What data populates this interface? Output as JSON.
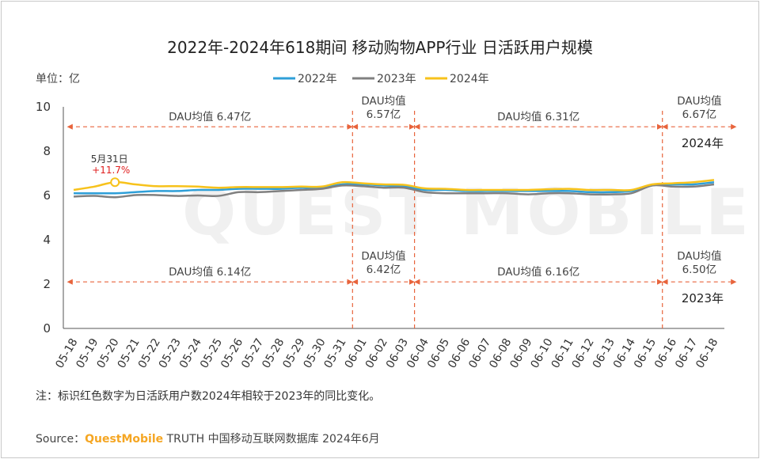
{
  "title": "2022年-2024年618期间 移动购物APP行业 日活跃用户规模",
  "unit_label": "单位：亿",
  "watermark": "QUEST MOBILE",
  "note": "注：标识红色数字为日活跃用户数2024年相较于2023年的同比变化。",
  "source": {
    "prefix": "Source：",
    "brand": "QuestMobile",
    "text": " TRUTH 中国移动互联网数据库 2024年6月"
  },
  "colors": {
    "y2022": "#2e9fd8",
    "y2023": "#808080",
    "y2024": "#f7c21b",
    "annotation": "#e8643c",
    "callout_red": "#e02020"
  },
  "chart_data": {
    "type": "line",
    "x": [
      "05-18",
      "05-19",
      "05-20",
      "05-21",
      "05-22",
      "05-23",
      "05-24",
      "05-25",
      "05-26",
      "05-27",
      "05-28",
      "05-29",
      "05-30",
      "05-31",
      "06-01",
      "06-02",
      "06-03",
      "06-04",
      "06-05",
      "06-06",
      "06-07",
      "06-08",
      "06-09",
      "06-10",
      "06-11",
      "06-12",
      "06-13",
      "06-14",
      "06-15",
      "06-16",
      "06-17",
      "06-18"
    ],
    "ylim": [
      0,
      10
    ],
    "yticks": [
      0,
      2,
      4,
      6,
      8,
      10
    ],
    "series": [
      {
        "name": "2022年",
        "color": "#2e9fd8",
        "values": [
          6.1,
          6.1,
          6.1,
          6.15,
          6.2,
          6.2,
          6.25,
          6.25,
          6.3,
          6.3,
          6.3,
          6.35,
          6.35,
          6.5,
          6.5,
          6.45,
          6.4,
          6.25,
          6.25,
          6.2,
          6.2,
          6.2,
          6.2,
          6.2,
          6.2,
          6.15,
          6.15,
          6.2,
          6.45,
          6.5,
          6.5,
          6.6
        ]
      },
      {
        "name": "2023年",
        "color": "#808080",
        "values": [
          5.95,
          5.98,
          5.92,
          6.02,
          6.02,
          5.98,
          6.0,
          5.98,
          6.15,
          6.15,
          6.2,
          6.25,
          6.3,
          6.45,
          6.42,
          6.35,
          6.35,
          6.15,
          6.1,
          6.1,
          6.1,
          6.1,
          6.05,
          6.1,
          6.1,
          6.05,
          6.05,
          6.1,
          6.45,
          6.4,
          6.4,
          6.5
        ]
      },
      {
        "name": "2024年",
        "color": "#f7c21b",
        "values": [
          6.25,
          6.4,
          6.6,
          6.5,
          6.42,
          6.42,
          6.4,
          6.35,
          6.38,
          6.38,
          6.38,
          6.4,
          6.4,
          6.6,
          6.55,
          6.5,
          6.48,
          6.32,
          6.3,
          6.25,
          6.25,
          6.25,
          6.25,
          6.28,
          6.3,
          6.25,
          6.25,
          6.25,
          6.5,
          6.55,
          6.6,
          6.7
        ]
      }
    ],
    "periods": [
      {
        "start": 0,
        "end": 13
      },
      {
        "start": 13,
        "end": 16
      },
      {
        "start": 16,
        "end": 28
      },
      {
        "start": 28,
        "end": 31
      }
    ],
    "annotations_2024": [
      {
        "lines": [
          "DAU均值 6.47亿"
        ]
      },
      {
        "lines": [
          "DAU均值",
          "6.57亿"
        ]
      },
      {
        "lines": [
          "DAU均值 6.31亿"
        ]
      },
      {
        "lines": [
          "DAU均值",
          "6.67亿"
        ]
      }
    ],
    "annotations_2023": [
      {
        "lines": [
          "DAU均值 6.14亿"
        ]
      },
      {
        "lines": [
          "DAU均值",
          "6.42亿"
        ]
      },
      {
        "lines": [
          "DAU均值 6.16亿"
        ]
      },
      {
        "lines": [
          "DAU均值",
          "6.50亿"
        ]
      }
    ],
    "band_values": {
      "y2024": 9.1,
      "y2023": 2.1
    },
    "year_labels": {
      "y2024": "2024年",
      "y2023": "2023年"
    },
    "callout": {
      "index": 2,
      "date": "5月31日",
      "value": "+11.7%"
    }
  }
}
